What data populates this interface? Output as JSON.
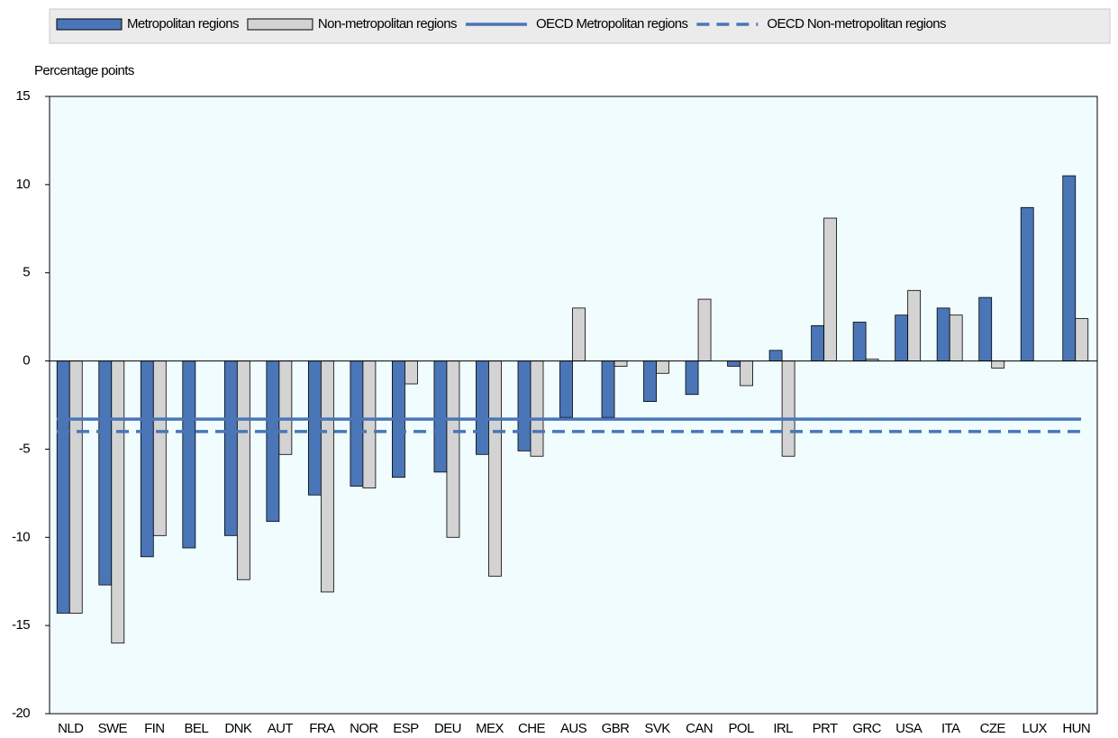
{
  "chart_data": {
    "type": "bar",
    "y_axis_label": "Percentage points",
    "categories": [
      "NLD",
      "SWE",
      "FIN",
      "BEL",
      "DNK",
      "AUT",
      "FRA",
      "NOR",
      "ESP",
      "DEU",
      "MEX",
      "CHE",
      "AUS",
      "GBR",
      "SVK",
      "CAN",
      "POL",
      "IRL",
      "PRT",
      "GRC",
      "USA",
      "ITA",
      "CZE",
      "LUX",
      "HUN"
    ],
    "series": [
      {
        "name": "Metropolitan regions",
        "color": "#4a76b8",
        "values": [
          -14.3,
          -12.7,
          -11.1,
          -10.6,
          -9.9,
          -9.1,
          -7.6,
          -7.1,
          -6.6,
          -6.3,
          -5.3,
          -5.1,
          -3.2,
          -3.2,
          -2.3,
          -1.9,
          -0.3,
          0.6,
          2.0,
          2.2,
          2.6,
          3.0,
          3.6,
          8.7,
          10.5
        ]
      },
      {
        "name": "Non-metropolitan regions",
        "color": "#d3d3d3",
        "values": [
          -14.3,
          -16.0,
          -9.9,
          null,
          -12.4,
          -5.3,
          -13.1,
          -7.2,
          -1.3,
          -10.0,
          -12.2,
          -5.4,
          3.0,
          -0.3,
          -0.7,
          3.5,
          -1.4,
          -5.4,
          8.1,
          0.1,
          4.0,
          2.6,
          -0.4,
          null,
          2.4
        ]
      }
    ],
    "reference_lines": [
      {
        "name": "OECD Metropolitan regions",
        "color": "#4a76b8",
        "value": -3.3,
        "dashed": false
      },
      {
        "name": "OECD Non-metropolitan regions",
        "color": "#4a76b8",
        "value": -4.0,
        "dashed": true
      }
    ],
    "ylim": [
      -20,
      15
    ],
    "yticks": [
      -20,
      -15,
      -10,
      -5,
      0,
      5,
      10,
      15
    ],
    "plot_background": "#f0fcfd"
  }
}
